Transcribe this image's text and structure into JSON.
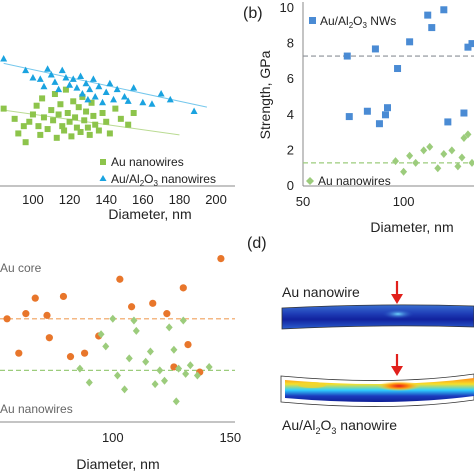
{
  "panels": {
    "b": "(b)",
    "d": "(d)"
  },
  "chart_data": [
    {
      "id": "a",
      "type": "scatter",
      "xlabel": "Diameter, nm",
      "ylabel": "",
      "xlim": [
        82,
        230
      ],
      "ylim": [
        0,
        10
      ],
      "xticks": [
        100,
        120,
        140,
        160,
        180,
        200
      ],
      "legend": "bottom-right",
      "series": [
        {
          "name": "Au nanowires",
          "marker": "square",
          "color": "#8dc44b",
          "points": [
            [
              84,
              5.3
            ],
            [
              90,
              4.6
            ],
            [
              92,
              3.6
            ],
            [
              95,
              4.1
            ],
            [
              96,
              3.0
            ],
            [
              98,
              4.4
            ],
            [
              100,
              4.9
            ],
            [
              102,
              5.5
            ],
            [
              103,
              4.1
            ],
            [
              104,
              3.5
            ],
            [
              105,
              6.0
            ],
            [
              106,
              4.7
            ],
            [
              108,
              3.9
            ],
            [
              110,
              5.2
            ],
            [
              111,
              4.5
            ],
            [
              112,
              6.3
            ],
            [
              113,
              3.3
            ],
            [
              114,
              4.9
            ],
            [
              115,
              5.6
            ],
            [
              116,
              4.1
            ],
            [
              117,
              3.8
            ],
            [
              118,
              6.6
            ],
            [
              119,
              5.0
            ],
            [
              120,
              4.4
            ],
            [
              121,
              3.4
            ],
            [
              122,
              5.8
            ],
            [
              123,
              4.7
            ],
            [
              124,
              4.0
            ],
            [
              125,
              5.4
            ],
            [
              126,
              3.7
            ],
            [
              127,
              6.1
            ],
            [
              128,
              4.5
            ],
            [
              129,
              5.1
            ],
            [
              130,
              4.0
            ],
            [
              131,
              3.5
            ],
            [
              132,
              5.7
            ],
            [
              133,
              4.8
            ],
            [
              134,
              4.2
            ],
            [
              136,
              3.8
            ],
            [
              138,
              5.0
            ],
            [
              140,
              4.4
            ],
            [
              142,
              3.6
            ],
            [
              145,
              5.3
            ],
            [
              148,
              4.6
            ],
            [
              152,
              4.2
            ],
            [
              155,
              5.0
            ]
          ],
          "trend": [
            [
              84,
              5.2
            ],
            [
              180,
              3.5
            ]
          ]
        },
        {
          "name": "Au/Al2O3 nanowires",
          "marker": "triangle",
          "color": "#1aa3e0",
          "points": [
            [
              84,
              8.7
            ],
            [
              96,
              7.9
            ],
            [
              100,
              7.4
            ],
            [
              104,
              7.3
            ],
            [
              106,
              6.8
            ],
            [
              108,
              8.0
            ],
            [
              110,
              7.6
            ],
            [
              112,
              7.1
            ],
            [
              114,
              6.6
            ],
            [
              116,
              7.9
            ],
            [
              118,
              7.4
            ],
            [
              120,
              6.9
            ],
            [
              122,
              7.3
            ],
            [
              124,
              6.7
            ],
            [
              126,
              7.5
            ],
            [
              127,
              6.3
            ],
            [
              129,
              7.0
            ],
            [
              130,
              5.9
            ],
            [
              131,
              6.6
            ],
            [
              133,
              7.3
            ],
            [
              134,
              6.1
            ],
            [
              136,
              6.8
            ],
            [
              138,
              5.7
            ],
            [
              140,
              6.4
            ],
            [
              142,
              7.0
            ],
            [
              144,
              5.9
            ],
            [
              146,
              6.6
            ],
            [
              150,
              6.1
            ],
            [
              152,
              5.8
            ],
            [
              155,
              6.7
            ],
            [
              160,
              5.7
            ],
            [
              165,
              5.6
            ],
            [
              170,
              6.3
            ],
            [
              175,
              5.9
            ],
            [
              188,
              5.1
            ]
          ],
          "trend": [
            [
              84,
              8.4
            ],
            [
              195,
              5.4
            ]
          ]
        }
      ],
      "legend_labels": {
        "au": "Au nanowires",
        "aual_prefix": "Au/Al",
        "aual_sub": "2",
        "aual_mid": "O",
        "aual_sub2": "3",
        "aual_suffix": " nanowires"
      }
    },
    {
      "id": "b",
      "type": "scatter",
      "xlabel": "Diameter, nm",
      "ylabel": "Strength, GPa",
      "xlim": [
        50,
        135
      ],
      "ylim": [
        0,
        10
      ],
      "xticks": [
        50,
        100
      ],
      "yticks": [
        0,
        2,
        4,
        6,
        8,
        10
      ],
      "legend": "top-right",
      "reference_lines": [
        7.3,
        1.3
      ],
      "series": [
        {
          "name": "Au/Al2O3 NWs",
          "marker": "square",
          "color": "#4a8bd4",
          "points": [
            [
              72,
              7.3
            ],
            [
              73,
              3.9
            ],
            [
              82,
              4.2
            ],
            [
              86,
              7.7
            ],
            [
              88,
              3.5
            ],
            [
              91,
              4.0
            ],
            [
              92,
              4.4
            ],
            [
              97,
              6.6
            ],
            [
              103,
              8.1
            ],
            [
              112,
              9.6
            ],
            [
              114,
              8.9
            ],
            [
              120,
              9.9
            ],
            [
              122,
              3.6
            ],
            [
              130,
              4.1
            ],
            [
              132,
              7.8
            ],
            [
              134,
              8.0
            ]
          ]
        },
        {
          "name": "Au nanowires",
          "marker": "diamond",
          "color": "#9ccc7c",
          "points": [
            [
              96,
              1.4
            ],
            [
              100,
              0.8
            ],
            [
              103,
              1.7
            ],
            [
              106,
              1.3
            ],
            [
              110,
              2.0
            ],
            [
              113,
              2.2
            ],
            [
              117,
              1.0
            ],
            [
              120,
              1.8
            ],
            [
              124,
              2.0
            ],
            [
              127,
              1.1
            ],
            [
              129,
              1.6
            ],
            [
              130,
              2.7
            ],
            [
              132,
              2.9
            ],
            [
              134,
              1.3
            ]
          ]
        }
      ],
      "legend_labels": {
        "nws_prefix": "Au/Al",
        "nws_sub": "2",
        "nws_mid": "O",
        "nws_sub2": "3",
        "nws_suffix": " NWs",
        "au": "Au nanowires"
      }
    },
    {
      "id": "c",
      "type": "scatter",
      "xlabel": "Diameter, nm",
      "ylabel": "",
      "xlim": [
        52,
        152
      ],
      "ylim": [
        0,
        10
      ],
      "xticks": [
        100,
        150
      ],
      "reference_lines": [
        6.0,
        3.0
      ],
      "annotations": [
        "Au core",
        "Au nanowires"
      ],
      "series": [
        {
          "name": "Au core",
          "marker": "circle",
          "color": "#e8762b",
          "points": [
            [
              55,
              6.0
            ],
            [
              60,
              4.0
            ],
            [
              63,
              6.3
            ],
            [
              67,
              7.2
            ],
            [
              72,
              6.2
            ],
            [
              73,
              4.9
            ],
            [
              79,
              7.3
            ],
            [
              82,
              3.8
            ],
            [
              88,
              4.0
            ],
            [
              94,
              5.0
            ],
            [
              103,
              8.3
            ],
            [
              108,
              6.7
            ],
            [
              117,
              6.9
            ],
            [
              123,
              6.3
            ],
            [
              126,
              3.2
            ],
            [
              130,
              7.8
            ],
            [
              132,
              4.5
            ],
            [
              137,
              2.9
            ],
            [
              146,
              9.5
            ]
          ]
        },
        {
          "name": "Au nanowires",
          "marker": "diamond",
          "color": "#9ccc7c",
          "points": [
            [
              86,
              3.1
            ],
            [
              90,
              2.3
            ],
            [
              95,
              5.1
            ],
            [
              97,
              4.4
            ],
            [
              100,
              6.0
            ],
            [
              102,
              2.7
            ],
            [
              105,
              1.9
            ],
            [
              107,
              3.7
            ],
            [
              109,
              5.9
            ],
            [
              110,
              5.3
            ],
            [
              114,
              3.5
            ],
            [
              116,
              4.1
            ],
            [
              118,
              2.2
            ],
            [
              120,
              3.0
            ],
            [
              122,
              2.4
            ],
            [
              124,
              5.5
            ],
            [
              126,
              4.2
            ],
            [
              127,
              1.2
            ],
            [
              128,
              3.1
            ],
            [
              130,
              5.9
            ],
            [
              131,
              2.8
            ],
            [
              133,
              3.3
            ],
            [
              136,
              2.7
            ],
            [
              141,
              3.2
            ]
          ]
        }
      ],
      "labels": {
        "core": "Au core",
        "nw": "Au nanowires"
      }
    }
  ],
  "panel_d": {
    "label_top": "Au nanowire",
    "label_bottom_prefix": "Au/Al",
    "label_bottom_sub": "2",
    "label_bottom_mid": "O",
    "label_bottom_sub2": "3",
    "label_bottom_suffix": " nanowire",
    "arrow_color": "#e1201c"
  }
}
